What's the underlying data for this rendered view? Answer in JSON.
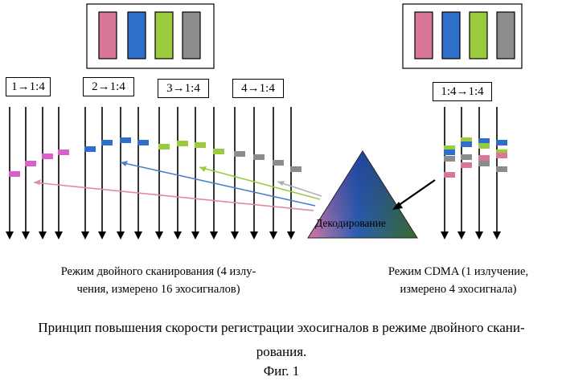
{
  "colors": {
    "pink": "#d9779a",
    "blue": "#2f6fcc",
    "green": "#9acb3c",
    "gray": "#8c8c8c",
    "mag": "#d860c8"
  },
  "legend_swatches": [
    "pink",
    "blue",
    "green",
    "gray"
  ],
  "groups": [
    {
      "label": "1→1:4"
    },
    {
      "label": "2→1:4"
    },
    {
      "label": "3→1:4"
    },
    {
      "label": "4→1:4"
    }
  ],
  "cdma": {
    "label": "1:4→1:4"
  },
  "decoder": {
    "label": "Декодирование"
  },
  "captions": {
    "left": "Режим двойного сканирования (4 излу-\nчения, измерено 16 эхосигналов)",
    "right": "Режим CDMA (1 излучение,\nизмерено 4 эхосигнала)"
  },
  "title": "Принцип повышения скорости регистрации эхосигналов в режиме двойного скани-\nрования.",
  "figure_label": "Фиг. 1"
}
